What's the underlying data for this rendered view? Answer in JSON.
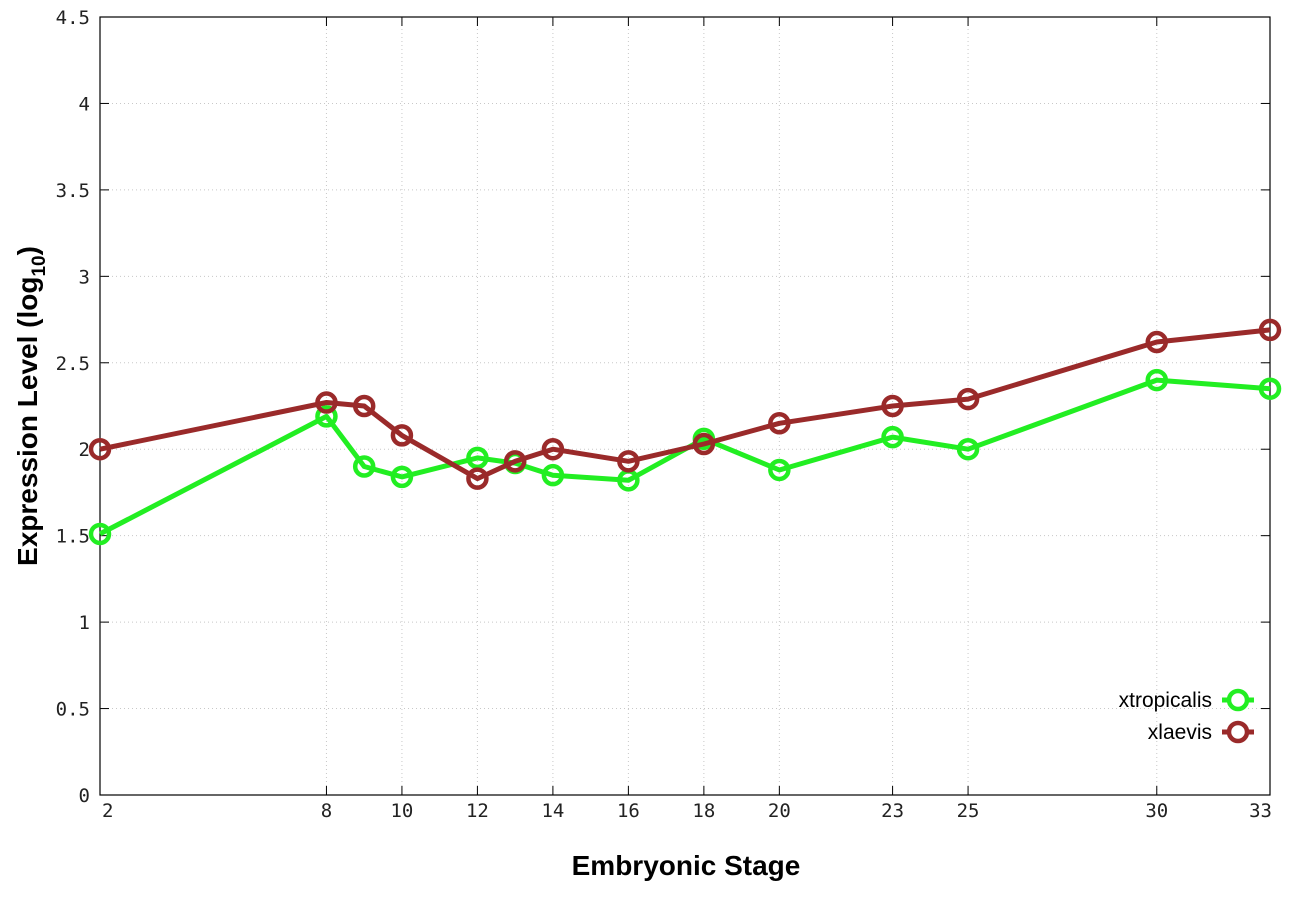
{
  "chart_data": {
    "type": "line",
    "xlabel": "Embryonic Stage",
    "ylabel_main": "Expression Level (log",
    "ylabel_sub": "10",
    "ylabel_close": ")",
    "x": [
      2,
      8,
      9,
      10,
      12,
      13,
      14,
      16,
      18,
      20,
      23,
      25,
      30,
      33
    ],
    "x_tick_labels": [
      "2",
      "8",
      "10",
      "12",
      "14",
      "16",
      "18",
      "20",
      "23",
      "25",
      "30",
      "33"
    ],
    "y_tick_labels": [
      "0",
      "0.5",
      "1",
      "1.5",
      "2",
      "2.5",
      "3",
      "3.5",
      "4",
      "4.5"
    ],
    "ylim": [
      0,
      4.5
    ],
    "grid": true,
    "legend_position": "bottom-right",
    "series": [
      {
        "name": "xtropicalis",
        "color": "#22ee22",
        "values": [
          1.51,
          2.19,
          1.9,
          1.84,
          1.95,
          1.92,
          1.85,
          1.82,
          2.06,
          1.88,
          2.07,
          2.0,
          2.4,
          2.35
        ]
      },
      {
        "name": "xlaevis",
        "color": "#9a2a2a",
        "values": [
          2.0,
          2.27,
          2.25,
          2.08,
          1.83,
          1.93,
          2.0,
          1.93,
          2.03,
          2.15,
          2.25,
          2.29,
          2.62,
          2.69
        ]
      }
    ]
  }
}
